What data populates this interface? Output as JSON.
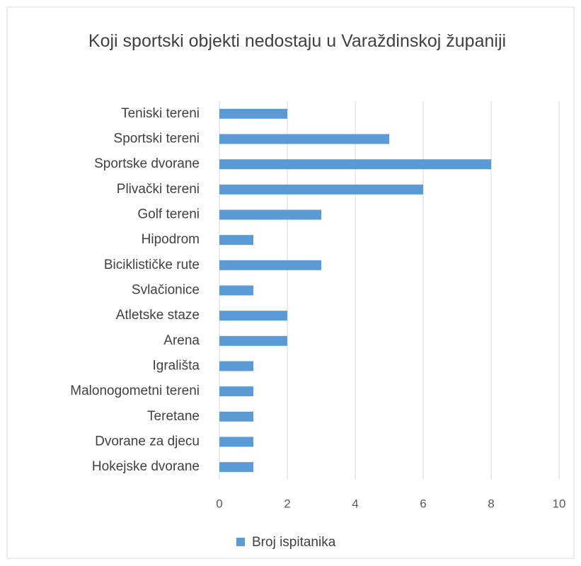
{
  "chart_data": {
    "type": "bar",
    "orientation": "horizontal",
    "title": "Koji sportski objekti nedostaju u Varaždinskoj županiji",
    "categories": [
      "Teniski tereni",
      "Sportski tereni",
      "Sportske dvorane",
      "Plivački tereni",
      "Golf tereni",
      "Hipodrom",
      "Biciklističke rute",
      "Svlačionice",
      "Atletske staze",
      "Arena",
      "Igrališta",
      "Malonogometni tereni",
      "Teretane",
      "Dvorane za djecu",
      "Hokejske dvorane"
    ],
    "series": [
      {
        "name": "Broj ispitanika",
        "color": "#5b9bd5",
        "values": [
          2,
          5,
          8,
          6,
          3,
          1,
          3,
          1,
          2,
          2,
          1,
          1,
          1,
          1,
          1
        ]
      }
    ],
    "xlim": [
      0,
      10
    ],
    "xticks": [
      0,
      2,
      4,
      6,
      8,
      10
    ],
    "grid": true,
    "legend": "bottom"
  }
}
